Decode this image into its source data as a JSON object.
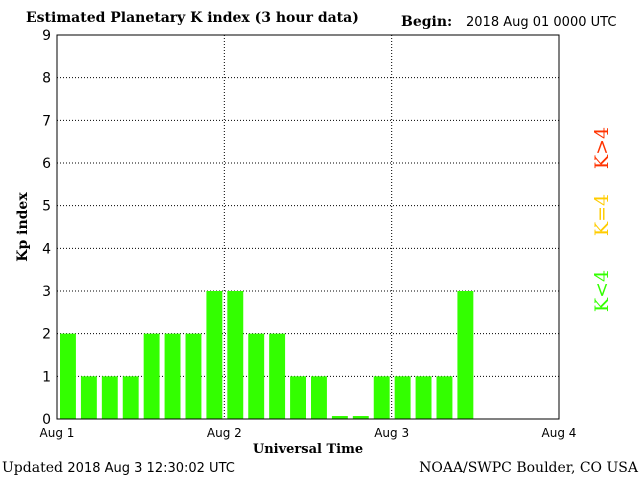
{
  "header": {
    "title": "Estimated Planetary K index (3 hour data)",
    "begin_label": "Begin:",
    "begin_value": "2018 Aug 01 0000 UTC"
  },
  "footer": {
    "updated_label": "Updated",
    "updated_value": "2018 Aug  3 12:30:02 UTC",
    "credit": "NOAA/SWPC Boulder, CO USA"
  },
  "legend": [
    {
      "text": "K>4",
      "color": "#ff3300"
    },
    {
      "text": "K=4",
      "color": "#ffcc00"
    },
    {
      "text": "K<4",
      "color": "#33ff00"
    }
  ],
  "chart_data": {
    "type": "bar",
    "xlabel": "Universal Time",
    "ylabel": "Kp index",
    "ylim": [
      0,
      9
    ],
    "yticks": [
      0,
      1,
      2,
      3,
      4,
      5,
      6,
      7,
      8,
      9
    ],
    "x_ticks": [
      "Aug 1",
      "Aug 2",
      "Aug 3",
      "Aug 4"
    ],
    "grid": true,
    "bar_color": "#33ff00",
    "values": [
      2,
      1,
      1,
      1,
      2,
      2,
      2,
      3,
      3,
      2,
      2,
      1,
      1,
      0.07,
      0.07,
      1,
      1,
      1,
      1,
      3
    ]
  }
}
